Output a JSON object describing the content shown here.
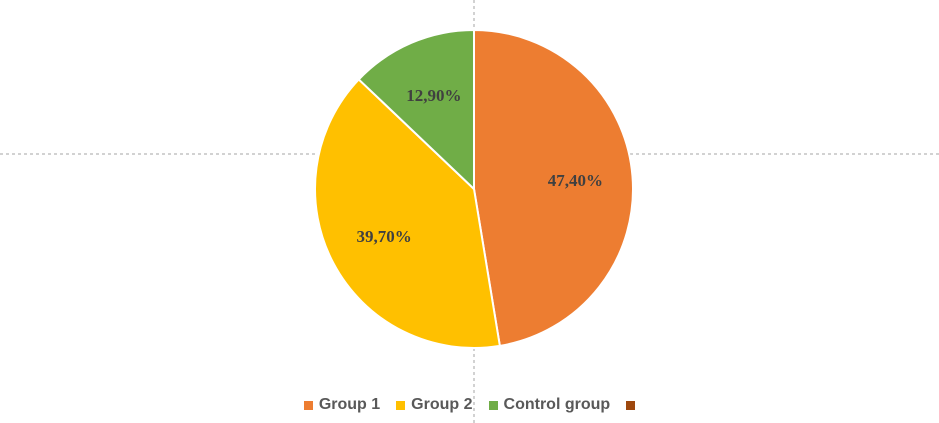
{
  "chart_data": {
    "type": "pie",
    "title": "",
    "categories": [
      "Group 1",
      "Group 2",
      "Control group",
      ""
    ],
    "values": [
      47.4,
      39.7,
      12.9,
      0
    ],
    "data_labels": [
      "47,40%",
      "39,70%",
      "12,90%",
      ""
    ],
    "colors": [
      "#ed7d31",
      "#ffc000",
      "#70ad47",
      "#9e480e"
    ],
    "legend": {
      "position": "bottom",
      "entries": [
        "Group 1",
        "Group 2",
        "Control group",
        ""
      ]
    }
  }
}
